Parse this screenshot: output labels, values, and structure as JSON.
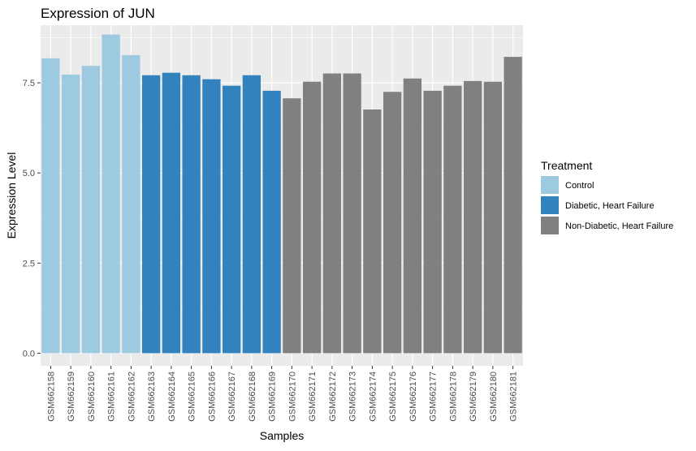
{
  "chart_data": {
    "type": "bar",
    "title": "Expression of  JUN",
    "xlabel": "Samples",
    "ylabel": "Expression Level",
    "ylim": [
      -0.35,
      9.1
    ],
    "yticks": [
      0.0,
      2.5,
      5.0,
      7.5
    ],
    "ytick_labels": [
      "0.0",
      "2.5",
      "5.0",
      "7.5"
    ],
    "grid": true,
    "legend_position": "right",
    "legend": {
      "title": "Treatment",
      "entries": [
        {
          "label": "Control",
          "color": "#9ecae1"
        },
        {
          "label": "Diabetic, Heart Failure",
          "color": "#3182bd"
        },
        {
          "label": "Non-Diabetic, Heart Failure",
          "color": "#808080"
        }
      ]
    },
    "bars": [
      {
        "category": "GSM662158",
        "value": 8.18,
        "group": "Control"
      },
      {
        "category": "GSM662159",
        "value": 7.73,
        "group": "Control"
      },
      {
        "category": "GSM662160",
        "value": 7.97,
        "group": "Control"
      },
      {
        "category": "GSM662161",
        "value": 8.84,
        "group": "Control"
      },
      {
        "category": "GSM662162",
        "value": 8.27,
        "group": "Control"
      },
      {
        "category": "GSM662163",
        "value": 7.71,
        "group": "Diabetic, Heart Failure"
      },
      {
        "category": "GSM662164",
        "value": 7.78,
        "group": "Diabetic, Heart Failure"
      },
      {
        "category": "GSM662165",
        "value": 7.71,
        "group": "Diabetic, Heart Failure"
      },
      {
        "category": "GSM662166",
        "value": 7.6,
        "group": "Diabetic, Heart Failure"
      },
      {
        "category": "GSM662167",
        "value": 7.42,
        "group": "Diabetic, Heart Failure"
      },
      {
        "category": "GSM662168",
        "value": 7.71,
        "group": "Diabetic, Heart Failure"
      },
      {
        "category": "GSM662169",
        "value": 7.28,
        "group": "Diabetic, Heart Failure"
      },
      {
        "category": "GSM662170",
        "value": 7.07,
        "group": "Non-Diabetic, Heart Failure"
      },
      {
        "category": "GSM662171",
        "value": 7.53,
        "group": "Non-Diabetic, Heart Failure"
      },
      {
        "category": "GSM662172",
        "value": 7.76,
        "group": "Non-Diabetic, Heart Failure"
      },
      {
        "category": "GSM662173",
        "value": 7.76,
        "group": "Non-Diabetic, Heart Failure"
      },
      {
        "category": "GSM662174",
        "value": 6.76,
        "group": "Non-Diabetic, Heart Failure"
      },
      {
        "category": "GSM662175",
        "value": 7.25,
        "group": "Non-Diabetic, Heart Failure"
      },
      {
        "category": "GSM662176",
        "value": 7.62,
        "group": "Non-Diabetic, Heart Failure"
      },
      {
        "category": "GSM662177",
        "value": 7.28,
        "group": "Non-Diabetic, Heart Failure"
      },
      {
        "category": "GSM662178",
        "value": 7.42,
        "group": "Non-Diabetic, Heart Failure"
      },
      {
        "category": "GSM662179",
        "value": 7.55,
        "group": "Non-Diabetic, Heart Failure"
      },
      {
        "category": "GSM662180",
        "value": 7.53,
        "group": "Non-Diabetic, Heart Failure"
      },
      {
        "category": "GSM662181",
        "value": 8.22,
        "group": "Non-Diabetic, Heart Failure"
      }
    ]
  }
}
